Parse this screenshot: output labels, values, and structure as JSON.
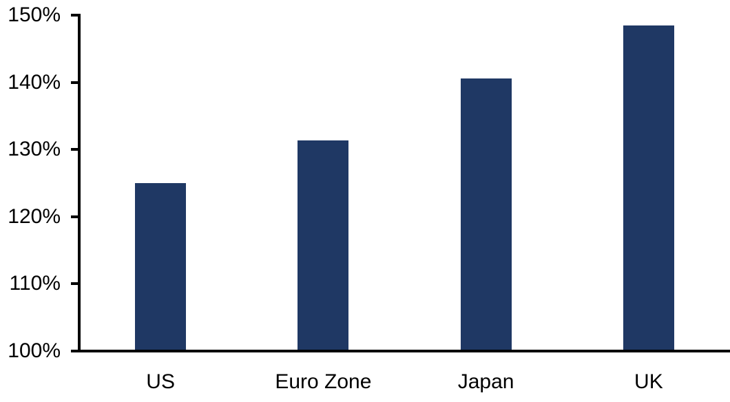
{
  "chart_data": {
    "type": "bar",
    "title": "",
    "xlabel": "",
    "ylabel": "",
    "categories": [
      "US",
      "Euro Zone",
      "Japan",
      "UK"
    ],
    "values": [
      125.0,
      131.4,
      140.6,
      148.5
    ],
    "value_format": "percent",
    "ylim": [
      100,
      150
    ],
    "yticks": [
      100,
      110,
      120,
      130,
      140,
      150
    ],
    "ytick_labels": [
      "100%",
      "110%",
      "120%",
      "130%",
      "140%",
      "150%"
    ],
    "grid": false,
    "legend": "none",
    "colors": {
      "bar": "#1f3864",
      "axis": "#000000",
      "text": "#000000",
      "background": "#ffffff"
    }
  }
}
